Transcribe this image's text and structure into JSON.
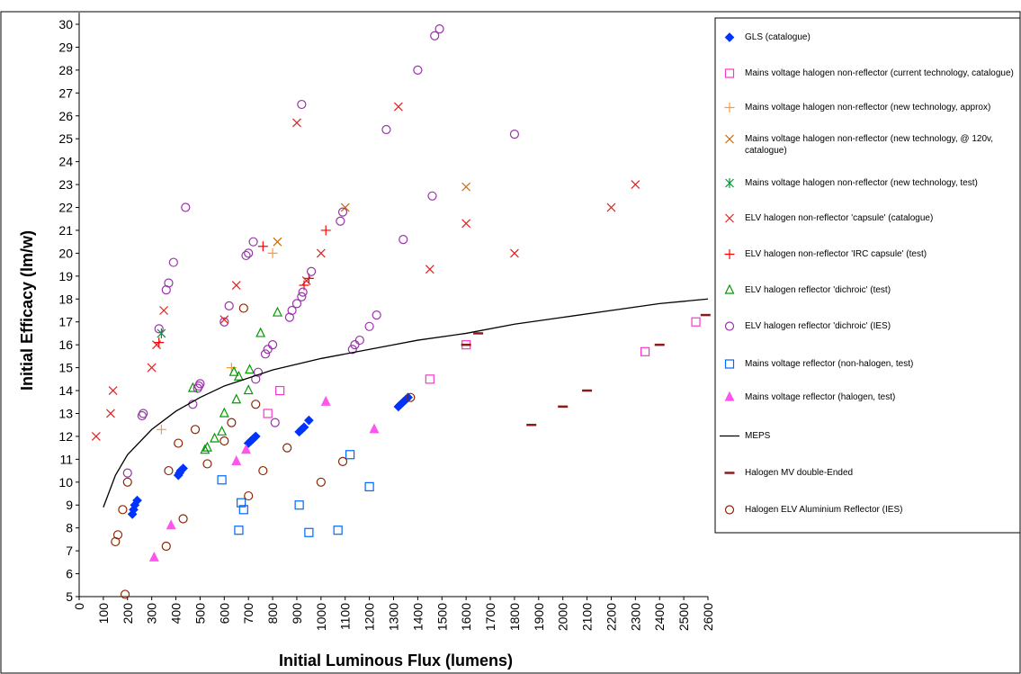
{
  "chart_data": {
    "type": "scatter",
    "x_label": "Initial Luminous Flux (lumens)",
    "y_label": "Initial Efficacy (lm/w)",
    "xlim": [
      0,
      2600
    ],
    "xticks": [
      0,
      100,
      200,
      300,
      400,
      500,
      600,
      700,
      800,
      900,
      1000,
      1100,
      1200,
      1300,
      1400,
      1500,
      1600,
      1700,
      1800,
      1900,
      2000,
      2100,
      2200,
      2300,
      2400,
      2500,
      2600
    ],
    "ylim": [
      5,
      30
    ],
    "yticks": [
      5,
      6,
      7,
      8,
      9,
      10,
      11,
      12,
      13,
      14,
      15,
      16,
      17,
      18,
      19,
      20,
      21,
      22,
      23,
      24,
      25,
      26,
      27,
      28,
      29,
      30
    ],
    "grid": false,
    "legend": "right",
    "series": [
      {
        "name": "GLS (catalogue)",
        "marker": "diamond",
        "color": "#0033ff",
        "x": [
          220,
          225,
          230,
          240,
          410,
          415,
          420,
          430,
          700,
          710,
          720,
          730,
          910,
          920,
          930,
          950,
          1320,
          1330,
          1340,
          1350,
          1360
        ],
        "values": [
          8.6,
          8.8,
          9.0,
          9.2,
          10.3,
          10.4,
          10.5,
          10.6,
          11.7,
          11.8,
          11.9,
          12.0,
          12.2,
          12.3,
          12.4,
          12.7,
          13.3,
          13.4,
          13.5,
          13.6,
          13.7
        ]
      },
      {
        "name": "Mains voltage halogen non-reflector (current technology, catalogue)",
        "marker": "square",
        "color": "#ff33cc",
        "x": [
          780,
          830,
          1450,
          1600,
          2340,
          2550
        ],
        "values": [
          13.0,
          14.0,
          14.5,
          16.0,
          15.7,
          17.0
        ]
      },
      {
        "name": "Mains voltage halogen non-reflector (new technology, approx)",
        "marker": "plus",
        "color": "#ff9933",
        "x": [
          340,
          630,
          800
        ],
        "values": [
          12.3,
          15.0,
          20.0
        ]
      },
      {
        "name": "Mains voltage halogen non-reflector (new technology, @ 120v, catalogue)",
        "marker": "x",
        "color": "#cc6600",
        "x": [
          820,
          1100,
          1600
        ],
        "values": [
          20.5,
          22.0,
          22.9
        ]
      },
      {
        "name": "Mains voltage halogen non-reflector (new technology, test)",
        "marker": "asterisk",
        "color": "#009933",
        "x": [
          340
        ],
        "values": [
          16.5
        ]
      },
      {
        "name": "ELV halogen non-reflector 'capsule' (catalogue)",
        "marker": "x",
        "color": "#e02020",
        "x": [
          70,
          130,
          140,
          300,
          320,
          350,
          600,
          650,
          900,
          940,
          1000,
          1320,
          1450,
          1600,
          1800,
          2200,
          2300
        ],
        "values": [
          12.0,
          13.0,
          14.0,
          15.0,
          16.0,
          17.5,
          17.1,
          18.6,
          25.7,
          18.8,
          20.0,
          26.4,
          19.3,
          21.3,
          20.0,
          22.0,
          23.0
        ]
      },
      {
        "name": "ELV halogen non-reflector 'IRC capsule' (test)",
        "marker": "plus",
        "color": "#ff0000",
        "x": [
          330,
          760,
          930,
          950,
          1020
        ],
        "values": [
          16.1,
          20.3,
          18.6,
          18.9,
          21.0
        ]
      },
      {
        "name": "ELV halogen reflector 'dichroic' (test)",
        "marker": "triangle",
        "color": "#009900",
        "x": [
          470,
          520,
          530,
          560,
          590,
          600,
          640,
          650,
          660,
          700,
          705,
          750,
          820
        ],
        "values": [
          14.1,
          11.4,
          11.5,
          11.9,
          12.2,
          13.0,
          14.8,
          13.6,
          14.6,
          14.0,
          14.9,
          16.5,
          17.4
        ]
      },
      {
        "name": "ELV halogen reflector 'dichroic' (IES)",
        "marker": "circle",
        "color": "#9933aa",
        "x": [
          200,
          260,
          265,
          330,
          360,
          370,
          390,
          440,
          470,
          490,
          495,
          500,
          600,
          620,
          690,
          700,
          720,
          730,
          740,
          770,
          780,
          800,
          810,
          870,
          880,
          900,
          920,
          925,
          920,
          960,
          1080,
          1090,
          1130,
          1140,
          1160,
          1200,
          1230,
          1270,
          1340,
          1400,
          1460,
          1470,
          1490,
          1800
        ],
        "values": [
          10.4,
          12.9,
          13.0,
          16.7,
          18.4,
          18.7,
          19.6,
          22.0,
          13.4,
          14.1,
          14.2,
          14.3,
          17.0,
          17.7,
          19.9,
          20.0,
          20.5,
          14.5,
          14.8,
          15.6,
          15.8,
          16.0,
          12.6,
          17.2,
          17.5,
          17.8,
          18.1,
          18.3,
          26.5,
          19.2,
          21.4,
          21.8,
          15.8,
          16.0,
          16.2,
          16.8,
          17.3,
          25.4,
          20.6,
          28.0,
          22.5,
          29.5,
          29.8,
          25.2
        ]
      },
      {
        "name": "Mains voltage reflector (non-halogen, test)",
        "marker": "square",
        "color": "#0066ff",
        "x": [
          590,
          660,
          670,
          680,
          910,
          950,
          1070,
          1120,
          1200
        ],
        "values": [
          10.1,
          7.9,
          9.1,
          8.8,
          9.0,
          7.8,
          7.9,
          11.2,
          9.8
        ]
      },
      {
        "name": "Mains voltage reflector (halogen, test)",
        "marker": "triangle-filled",
        "color": "#ff55ee",
        "x": [
          310,
          380,
          650,
          690,
          1020,
          1220
        ],
        "values": [
          6.7,
          8.1,
          10.9,
          11.4,
          13.5,
          12.3
        ]
      },
      {
        "name": "MEPS",
        "marker": "line",
        "color": "#000000",
        "x": [
          100,
          150,
          200,
          300,
          400,
          500,
          600,
          800,
          1000,
          1200,
          1400,
          1600,
          1800,
          2000,
          2200,
          2400,
          2600
        ],
        "values": [
          8.9,
          10.3,
          11.2,
          12.3,
          13.1,
          13.7,
          14.2,
          14.9,
          15.4,
          15.8,
          16.2,
          16.5,
          16.9,
          17.2,
          17.5,
          17.8,
          18.0
        ]
      },
      {
        "name": "Halogen MV double-Ended",
        "marker": "dash",
        "color": "#8b1a1a",
        "x": [
          1600,
          1650,
          1870,
          2000,
          2100,
          2400,
          2590
        ],
        "values": [
          16.0,
          16.5,
          12.5,
          13.3,
          14.0,
          16.0,
          17.3
        ]
      },
      {
        "name": "Halogen ELV Aluminium Reflector (IES)",
        "marker": "circle",
        "color": "#8b2500",
        "x": [
          150,
          160,
          180,
          190,
          200,
          360,
          370,
          410,
          430,
          480,
          530,
          600,
          630,
          680,
          700,
          730,
          760,
          860,
          1000,
          1090,
          1370
        ],
        "values": [
          7.4,
          7.7,
          8.8,
          5.1,
          10.0,
          7.2,
          10.5,
          11.7,
          8.4,
          12.3,
          10.8,
          11.8,
          12.6,
          17.6,
          9.4,
          13.4,
          10.5,
          11.5,
          10.0,
          10.9,
          13.7
        ]
      }
    ]
  }
}
